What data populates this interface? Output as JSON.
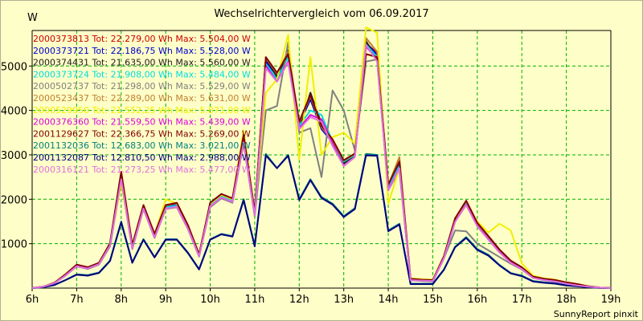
{
  "title": "Wechselrichtervergleich vom 06.09.2017",
  "unit_label": "W",
  "credit": "SunnyReport pinxit",
  "chart_data": {
    "type": "line",
    "title": "Wechselrichtervergleich vom 06.09.2017",
    "xlabel": "",
    "ylabel": "W",
    "xlim": [
      6,
      19
    ],
    "ylim": [
      0,
      5800
    ],
    "x_ticks": [
      6,
      7,
      8,
      9,
      10,
      11,
      12,
      13,
      14,
      15,
      16,
      17,
      18,
      19
    ],
    "x_tick_labels": [
      "6h",
      "7h",
      "8h",
      "9h",
      "10h",
      "11h",
      "12h",
      "13h",
      "14h",
      "15h",
      "16h",
      "17h",
      "18h",
      "19h"
    ],
    "y_ticks": [
      1000,
      2000,
      3000,
      4000,
      5000
    ],
    "y_tick_labels": [
      "1000",
      "2000",
      "3000",
      "4000",
      "5000"
    ],
    "grid": true,
    "legend_position": "top-left",
    "x": [
      6,
      6.25,
      6.5,
      6.75,
      7,
      7.25,
      7.5,
      7.75,
      8,
      8.25,
      8.5,
      8.75,
      9,
      9.25,
      9.5,
      9.75,
      10,
      10.25,
      10.5,
      10.75,
      11,
      11.25,
      11.5,
      11.75,
      12,
      12.25,
      12.5,
      12.75,
      13,
      13.25,
      13.5,
      13.75,
      14,
      14.25,
      14.5,
      14.75,
      15,
      15.25,
      15.5,
      15.75,
      16,
      16.25,
      16.5,
      16.75,
      17,
      17.25,
      17.5,
      17.75,
      18,
      18.25,
      18.5,
      18.75,
      19
    ],
    "series": [
      {
        "name": "2000373813 Tot: 22.279,00 Wh Max: 5.504,00 W",
        "color": "#cc0000",
        "values": [
          0,
          30,
          120,
          300,
          520,
          460,
          560,
          1000,
          2600,
          950,
          1850,
          1200,
          1850,
          1900,
          1400,
          750,
          1900,
          2100,
          2000,
          3400,
          1700,
          5150,
          4800,
          5300,
          3700,
          4300,
          3600,
          3300,
          2850,
          3000,
          5504,
          5300,
          2300,
          2800,
          200,
          180,
          170,
          700,
          1550,
          1950,
          1450,
          1150,
          850,
          600,
          450,
          250,
          200,
          170,
          120,
          80,
          40,
          10,
          0
        ]
      },
      {
        "name": "2000373721 Tot: 22.186,75 Wh Max: 5.528,00 W",
        "color": "#0000cc",
        "values": [
          0,
          30,
          120,
          300,
          500,
          450,
          550,
          980,
          2550,
          930,
          1830,
          1180,
          1830,
          1880,
          1380,
          740,
          1880,
          2080,
          1980,
          3380,
          1680,
          5100,
          4780,
          5250,
          3680,
          4250,
          3580,
          3280,
          2830,
          2980,
          5528,
          5250,
          2280,
          2780,
          190,
          170,
          160,
          690,
          1530,
          1930,
          1430,
          1130,
          830,
          590,
          440,
          240,
          190,
          160,
          110,
          70,
          30,
          10,
          0
        ]
      },
      {
        "name": "2000374431 Tot: 21.635,00 Wh Max: 5.560,00 W",
        "color": "#202020",
        "values": [
          0,
          30,
          110,
          290,
          500,
          440,
          540,
          960,
          2500,
          900,
          1800,
          1150,
          1800,
          1850,
          1350,
          720,
          1850,
          2050,
          1950,
          3300,
          1650,
          5200,
          4750,
          5350,
          3600,
          4400,
          3700,
          3250,
          2800,
          3000,
          5560,
          5150,
          2250,
          2700,
          180,
          170,
          160,
          680,
          1500,
          1900,
          1400,
          1100,
          820,
          580,
          430,
          240,
          190,
          160,
          110,
          70,
          30,
          10,
          0
        ]
      },
      {
        "name": "2000373724 Tot: 21.908,00 Wh Max: 5.484,00 W",
        "color": "#00dddd",
        "values": [
          0,
          30,
          115,
          295,
          505,
          450,
          550,
          980,
          2500,
          920,
          1820,
          1170,
          1820,
          1860,
          1370,
          730,
          1870,
          2070,
          1970,
          3350,
          1670,
          5050,
          4700,
          5200,
          3650,
          4000,
          3900,
          3300,
          2850,
          3000,
          5484,
          5200,
          2270,
          2750,
          190,
          170,
          160,
          690,
          1520,
          1920,
          1420,
          1120,
          830,
          590,
          440,
          240,
          190,
          160,
          110,
          70,
          30,
          10,
          0
        ]
      },
      {
        "name": "2000502737 Tot: 21.298,00 Wh Max: 5.529,00 W",
        "color": "#808080",
        "values": [
          0,
          30,
          110,
          280,
          490,
          430,
          530,
          940,
          2400,
          880,
          1780,
          1130,
          1780,
          1820,
          1330,
          710,
          1820,
          2020,
          1920,
          3250,
          1620,
          4000,
          4100,
          5529,
          3500,
          3600,
          2500,
          4450,
          4000,
          3100,
          5100,
          5150,
          2200,
          2650,
          180,
          160,
          150,
          670,
          1300,
          1280,
          1000,
          850,
          700,
          550,
          420,
          230,
          180,
          150,
          100,
          60,
          30,
          10,
          0
        ]
      },
      {
        "name": "2000523437 Tot: 22.289,00 Wh Max: 5.631,00 W",
        "color": "#c08030",
        "values": [
          0,
          30,
          120,
          310,
          520,
          470,
          570,
          1000,
          2600,
          960,
          1860,
          1210,
          1860,
          1910,
          1410,
          760,
          1910,
          2110,
          2010,
          3420,
          1710,
          5180,
          4830,
          5320,
          3720,
          4320,
          3620,
          3320,
          2870,
          3020,
          5631,
          5320,
          2320,
          2950,
          200,
          180,
          170,
          710,
          1560,
          1960,
          1460,
          1160,
          860,
          610,
          460,
          250,
          200,
          170,
          120,
          80,
          40,
          10,
          0
        ]
      },
      {
        "name": "2000529950 Tot: 21.552,25 Wh Max: 5.871,00 W",
        "color": "#f0f000",
        "values": [
          0,
          30,
          120,
          300,
          520,
          460,
          560,
          1000,
          2350,
          950,
          1850,
          1200,
          2000,
          1900,
          1400,
          750,
          1900,
          2100,
          2000,
          3550,
          1700,
          4400,
          4700,
          5700,
          2900,
          5200,
          3000,
          3400,
          3500,
          3250,
          5871,
          5750,
          1900,
          2700,
          220,
          200,
          190,
          720,
          1580,
          1850,
          1500,
          1250,
          1450,
          1300,
          560,
          280,
          220,
          190,
          130,
          90,
          40,
          10,
          0
        ]
      },
      {
        "name": "2000376360 Tot: 21.559,50 Wh Max: 5.439,00 W",
        "color": "#dd00dd",
        "values": [
          0,
          30,
          110,
          290,
          490,
          440,
          540,
          960,
          2480,
          890,
          1790,
          1140,
          1790,
          1830,
          1340,
          720,
          1840,
          2040,
          1940,
          3300,
          1640,
          5000,
          4650,
          5100,
          3600,
          3900,
          3800,
          3250,
          2750,
          2950,
          5439,
          5150,
          2220,
          2700,
          180,
          170,
          160,
          680,
          1500,
          1880,
          1400,
          1100,
          810,
          580,
          430,
          230,
          180,
          150,
          100,
          60,
          30,
          10,
          0
        ]
      },
      {
        "name": "2001129627 Tot: 22.366,75 Wh Max: 5.269,00 W",
        "color": "#800000",
        "values": [
          0,
          30,
          120,
          310,
          530,
          470,
          570,
          1010,
          2620,
          970,
          1870,
          1220,
          1870,
          1920,
          1420,
          760,
          1920,
          2120,
          2020,
          3450,
          1720,
          5200,
          4850,
          5269,
          3750,
          4350,
          3650,
          3350,
          2880,
          3030,
          5269,
          5200,
          2330,
          2850,
          210,
          190,
          180,
          720,
          1570,
          1970,
          1470,
          1170,
          870,
          620,
          470,
          260,
          210,
          180,
          130,
          90,
          40,
          10,
          0
        ]
      },
      {
        "name": "2001132036 Tot: 12.683,00 Wh Max: 3.021,00 W",
        "color": "#008080",
        "values": [
          0,
          20,
          70,
          180,
          310,
          290,
          350,
          620,
          1500,
          580,
          1100,
          700,
          1100,
          1100,
          800,
          430,
          1100,
          1220,
          1170,
          2000,
          950,
          3021,
          2700,
          3000,
          2000,
          2450,
          2050,
          1900,
          1620,
          1800,
          3021,
          3000,
          1300,
          1450,
          100,
          100,
          100,
          420,
          930,
          1150,
          880,
          750,
          520,
          340,
          280,
          160,
          130,
          110,
          70,
          40,
          20,
          5,
          0
        ]
      },
      {
        "name": "2001132087 Tot: 12.810,50 Wh Max: 2.988,00 W",
        "color": "#000080",
        "values": [
          0,
          20,
          70,
          180,
          300,
          280,
          340,
          610,
          1480,
          570,
          1090,
          690,
          1090,
          1090,
          790,
          420,
          1090,
          1210,
          1160,
          1980,
          940,
          2988,
          2700,
          2980,
          1980,
          2430,
          2030,
          1880,
          1600,
          1780,
          2988,
          2980,
          1280,
          1430,
          90,
          90,
          90,
          410,
          920,
          1130,
          860,
          730,
          510,
          330,
          270,
          150,
          120,
          100,
          60,
          40,
          20,
          5,
          0
        ]
      },
      {
        "name": "2000316121 Tot: 21.273,25 Wh Max: 5.477,00 W",
        "color": "#e070e0",
        "values": [
          0,
          30,
          110,
          285,
          495,
          440,
          540,
          960,
          2450,
          890,
          1790,
          1140,
          1790,
          1830,
          1340,
          720,
          1840,
          2040,
          1940,
          3280,
          1640,
          4950,
          4650,
          5080,
          3580,
          3850,
          3750,
          3200,
          2750,
          2950,
          5477,
          5100,
          2200,
          2700,
          180,
          170,
          160,
          680,
          1490,
          1870,
          1390,
          1090,
          800,
          570,
          430,
          230,
          180,
          150,
          100,
          60,
          30,
          10,
          0
        ]
      }
    ]
  }
}
